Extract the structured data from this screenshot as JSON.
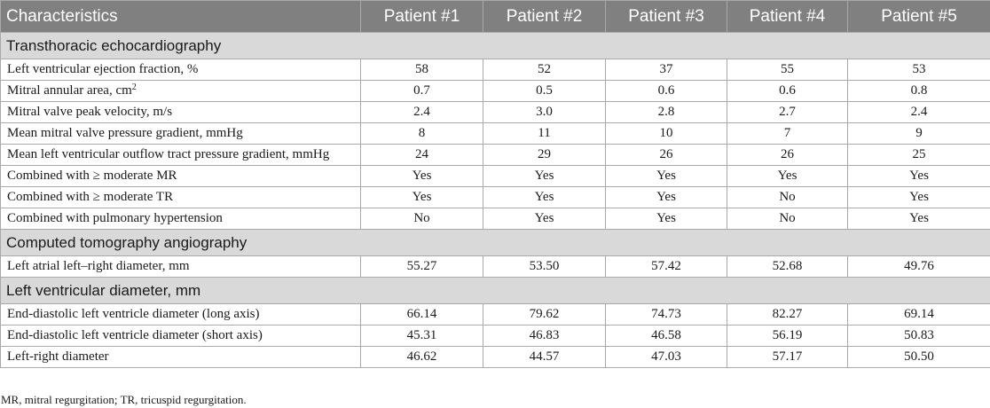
{
  "table": {
    "headers": [
      "Characteristics",
      "Patient #1",
      "Patient #2",
      "Patient #3",
      "Patient #4",
      "Patient #5"
    ],
    "sections": [
      {
        "title": "Transthoracic echocardiography",
        "rows": [
          {
            "label": "Left ventricular ejection fraction, %",
            "values": [
              "58",
              "52",
              "37",
              "55",
              "53"
            ]
          },
          {
            "label": "Mitral annular area, cm",
            "label_sup": "2",
            "values": [
              "0.7",
              "0.5",
              "0.6",
              "0.6",
              "0.8"
            ]
          },
          {
            "label": "Mitral valve peak velocity, m/s",
            "values": [
              "2.4",
              "3.0",
              "2.8",
              "2.7",
              "2.4"
            ]
          },
          {
            "label": "Mean mitral valve pressure gradient, mmHg",
            "values": [
              "8",
              "11",
              "10",
              "7",
              "9"
            ]
          },
          {
            "label": "Mean left ventricular outflow tract pressure gradient, mmHg",
            "values": [
              "24",
              "29",
              "26",
              "26",
              "25"
            ]
          },
          {
            "label": "Combined with ≥ moderate MR",
            "values": [
              "Yes",
              "Yes",
              "Yes",
              "Yes",
              "Yes"
            ]
          },
          {
            "label": "Combined with ≥ moderate TR",
            "values": [
              "Yes",
              "Yes",
              "Yes",
              "No",
              "Yes"
            ]
          },
          {
            "label": "Combined with pulmonary hypertension",
            "values": [
              "No",
              "Yes",
              "Yes",
              "No",
              "Yes"
            ]
          }
        ]
      },
      {
        "title": "Computed tomography angiography",
        "rows": [
          {
            "label": "Left atrial left–right diameter, mm",
            "values": [
              "55.27",
              "53.50",
              "57.42",
              "52.68",
              "49.76"
            ]
          }
        ]
      },
      {
        "title": "Left ventricular diameter, mm",
        "rows": [
          {
            "label": "End-diastolic left ventricle diameter (long axis)",
            "values": [
              "66.14",
              "79.62",
              "74.73",
              "82.27",
              "69.14"
            ]
          },
          {
            "label": "End-diastolic left ventricle diameter (short axis)",
            "values": [
              "45.31",
              "46.83",
              "46.58",
              "56.19",
              "50.83"
            ]
          },
          {
            "label": "Left-right diameter",
            "values": [
              "46.62",
              "44.57",
              "47.03",
              "57.17",
              "50.50"
            ]
          }
        ]
      }
    ]
  },
  "footnote": "MR, mitral regurgitation; TR, tricuspid regurgitation.",
  "colors": {
    "header_bg": "#808080",
    "section_bg": "#d9d9d9",
    "border": "#a9a9a9"
  }
}
